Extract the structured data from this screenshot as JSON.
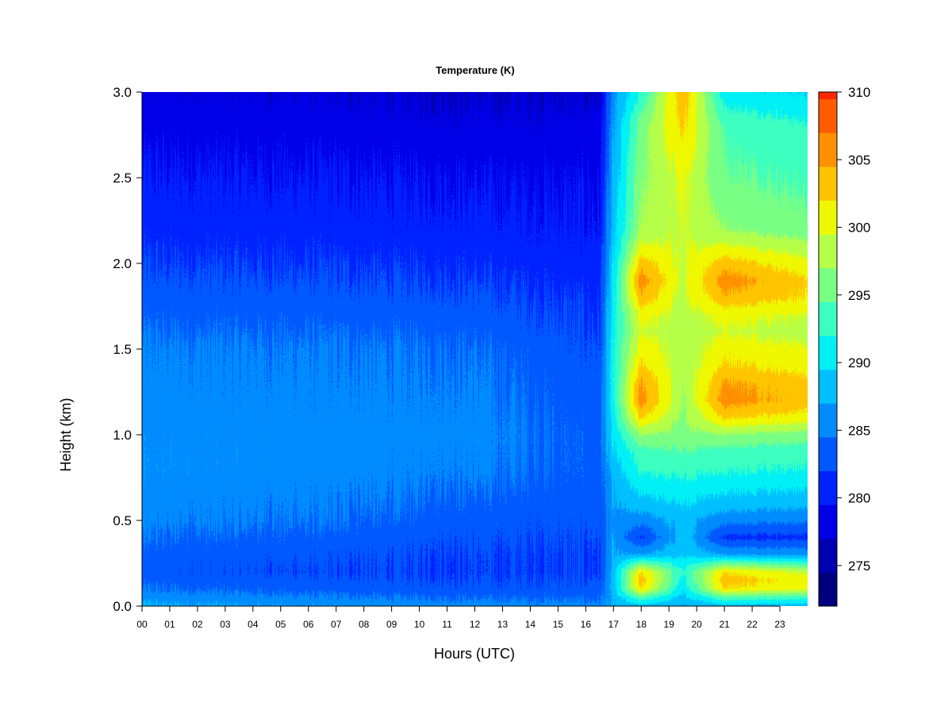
{
  "chart_data": {
    "type": "heatmap",
    "title": "Temperature (K)",
    "xlabel": "Hours (UTC)",
    "ylabel": "Height (km)",
    "x_ticks": [
      "00",
      "01",
      "02",
      "03",
      "04",
      "05",
      "06",
      "07",
      "08",
      "09",
      "10",
      "11",
      "12",
      "13",
      "14",
      "15",
      "16",
      "17",
      "18",
      "19",
      "20",
      "21",
      "22",
      "23"
    ],
    "x_range": [
      0,
      24
    ],
    "y_ticks": [
      "0.0",
      "0.5",
      "1.0",
      "1.5",
      "2.0",
      "2.5",
      "3.0"
    ],
    "y_range": [
      0,
      3
    ],
    "colorbar": {
      "label_values": [
        "275",
        "280",
        "285",
        "290",
        "295",
        "300",
        "305",
        "310"
      ],
      "range": [
        272,
        310
      ],
      "level_step": 2.5,
      "colors": [
        "#00007f",
        "#0000b0",
        "#0000e8",
        "#0022ff",
        "#0058ff",
        "#008cff",
        "#00c0ff",
        "#00f0f6",
        "#3dffc0",
        "#79ff84",
        "#b6ff48",
        "#f0f800",
        "#ffc400",
        "#ff9000",
        "#ff5c00",
        "#ff2800",
        "#e80000",
        "#b00000",
        "#7f0000"
      ]
    },
    "profiles": [
      {
        "hour": 0,
        "height_km": [
          0.0,
          0.05,
          0.1,
          0.2,
          0.3,
          0.5,
          0.8,
          1.0,
          1.2,
          1.5,
          1.8,
          2.0,
          2.2,
          2.5,
          2.8,
          3.0
        ],
        "temperature_K": [
          287.5,
          286.0,
          284.5,
          283.0,
          283.5,
          285.2,
          286.2,
          286.0,
          285.6,
          285.0,
          283.2,
          282.0,
          281.0,
          279.8,
          278.5,
          277.6
        ]
      },
      {
        "hour": 6,
        "height_km": [
          0.0,
          0.05,
          0.1,
          0.2,
          0.3,
          0.5,
          0.8,
          1.0,
          1.2,
          1.5,
          1.8,
          2.0,
          2.2,
          2.5,
          2.8,
          3.0
        ],
        "temperature_K": [
          286.5,
          285.0,
          283.5,
          282.2,
          282.8,
          284.6,
          285.8,
          285.8,
          285.4,
          284.8,
          283.0,
          281.8,
          280.8,
          279.6,
          278.3,
          277.4
        ]
      },
      {
        "hour": 12,
        "height_km": [
          0.0,
          0.05,
          0.1,
          0.2,
          0.3,
          0.5,
          0.8,
          1.0,
          1.2,
          1.5,
          1.8,
          2.0,
          2.2,
          2.5,
          2.8,
          3.0
        ],
        "temperature_K": [
          285.8,
          284.2,
          282.8,
          282.0,
          282.2,
          283.2,
          285.2,
          285.6,
          285.2,
          284.4,
          282.6,
          281.4,
          280.4,
          279.2,
          277.8,
          276.9
        ]
      },
      {
        "hour": 16.5,
        "height_km": [
          0.0,
          0.05,
          0.1,
          0.2,
          0.3,
          0.5,
          0.8,
          1.0,
          1.2,
          1.5,
          1.8,
          2.0,
          2.2,
          2.5,
          2.8,
          3.0
        ],
        "temperature_K": [
          285.5,
          284.0,
          283.0,
          282.0,
          282.0,
          282.8,
          283.4,
          283.4,
          283.0,
          282.4,
          281.4,
          280.6,
          279.8,
          279.0,
          278.0,
          277.0
        ]
      },
      {
        "hour": 17,
        "height_km": [
          0.0,
          0.1,
          0.2,
          0.3,
          0.5,
          0.8,
          1.0,
          1.2,
          1.5,
          1.8,
          2.0,
          2.2,
          2.5,
          2.8,
          3.0
        ],
        "temperature_K": [
          287.0,
          288.0,
          288.2,
          287.0,
          286.0,
          288.0,
          290.0,
          291.5,
          291.5,
          290.5,
          289.5,
          288.5,
          287.5,
          286.5,
          286.0
        ]
      },
      {
        "hour": 18,
        "height_km": [
          0.0,
          0.05,
          0.1,
          0.15,
          0.2,
          0.25,
          0.3,
          0.4,
          0.5,
          0.6,
          0.7,
          0.8,
          0.9,
          1.0,
          1.1,
          1.2,
          1.3,
          1.4,
          1.5,
          1.6,
          1.7,
          1.8,
          1.9,
          2.0,
          2.1,
          2.2,
          2.5,
          2.8,
          3.0
        ],
        "temperature_K": [
          288.5,
          294.0,
          302.0,
          303.5,
          302.0,
          295.0,
          287.0,
          281.5,
          285.5,
          288.5,
          290.5,
          292.5,
          293.5,
          297.0,
          302.5,
          306.0,
          305.0,
          302.5,
          301.0,
          299.5,
          300.5,
          304.0,
          306.0,
          303.5,
          300.0,
          297.5,
          296.5,
          296.0,
          292.0
        ]
      },
      {
        "hour": 19.5,
        "height_km": [
          0.0,
          0.1,
          0.2,
          0.3,
          0.5,
          1.0,
          1.5,
          2.0,
          2.5,
          3.0
        ],
        "temperature_K": [
          287.0,
          290.0,
          292.0,
          289.0,
          288.0,
          296.0,
          298.0,
          299.0,
          300.0,
          304.0
        ]
      },
      {
        "hour": 21,
        "height_km": [
          0.0,
          0.05,
          0.1,
          0.15,
          0.2,
          0.25,
          0.3,
          0.4,
          0.5,
          0.6,
          0.7,
          0.8,
          0.9,
          1.0,
          1.1,
          1.2,
          1.3,
          1.4,
          1.5,
          1.6,
          1.7,
          1.8,
          1.9,
          2.0,
          2.1,
          2.2,
          2.5,
          2.8,
          3.0
        ],
        "temperature_K": [
          288.5,
          294.0,
          302.0,
          303.5,
          302.0,
          295.0,
          287.0,
          281.5,
          285.5,
          288.5,
          290.5,
          292.5,
          293.5,
          297.0,
          302.5,
          306.0,
          305.0,
          302.5,
          301.0,
          299.5,
          300.5,
          304.0,
          306.0,
          303.5,
          300.0,
          297.0,
          295.0,
          294.0,
          290.5
        ]
      },
      {
        "hour": 23.8,
        "height_km": [
          0.0,
          0.05,
          0.1,
          0.15,
          0.2,
          0.25,
          0.3,
          0.4,
          0.5,
          0.6,
          0.7,
          0.8,
          0.9,
          1.0,
          1.1,
          1.2,
          1.3,
          1.4,
          1.5,
          1.6,
          1.7,
          1.8,
          1.9,
          2.0,
          2.1,
          2.2,
          2.5,
          2.8,
          3.0
        ],
        "temperature_K": [
          288.0,
          293.0,
          300.0,
          301.0,
          299.0,
          293.0,
          286.5,
          281.5,
          285.0,
          288.0,
          290.0,
          292.0,
          293.0,
          296.0,
          301.0,
          303.5,
          303.0,
          301.0,
          300.0,
          298.5,
          299.5,
          302.0,
          302.5,
          300.5,
          298.0,
          295.5,
          294.0,
          292.5,
          289.5
        ]
      }
    ]
  }
}
